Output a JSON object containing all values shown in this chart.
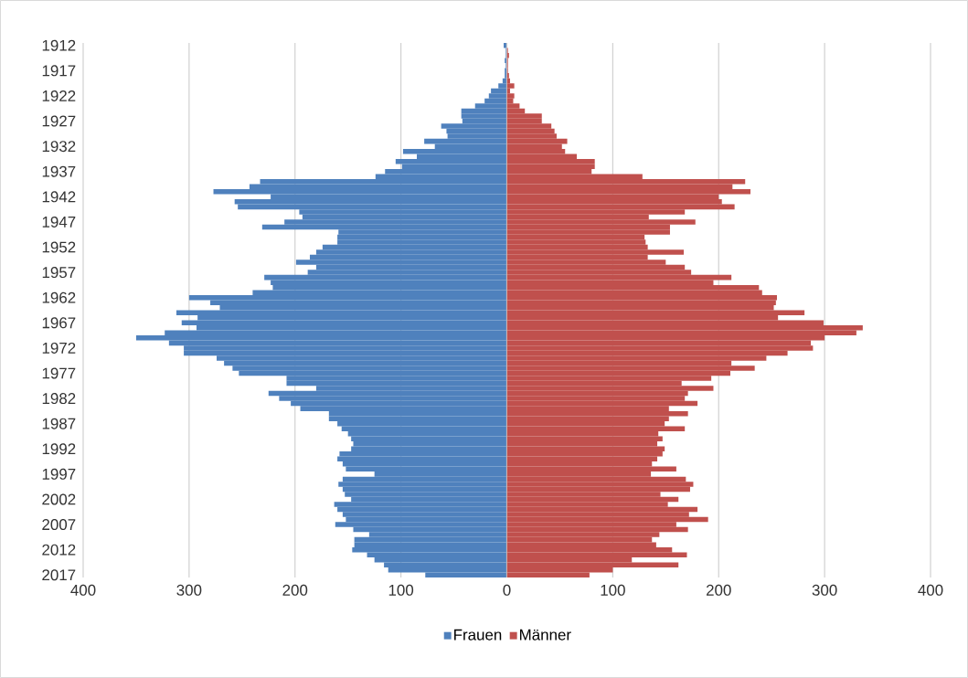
{
  "chart_data": [
    {
      "type": "bar",
      "orientation": "horizontal",
      "categories": [
        "1912",
        null,
        null,
        null,
        null,
        "1917",
        null,
        null,
        null,
        null,
        "1922",
        null,
        null,
        null,
        null,
        "1927",
        null,
        null,
        null,
        null,
        "1932",
        null,
        null,
        null,
        null,
        "1937",
        null,
        null,
        null,
        null,
        "1942",
        null,
        null,
        null,
        null,
        "1947",
        null,
        null,
        null,
        null,
        "1952",
        null,
        null,
        null,
        null,
        "1957",
        null,
        null,
        null,
        null,
        "1962",
        null,
        null,
        null,
        null,
        "1967",
        null,
        null,
        null,
        null,
        "1972",
        null,
        null,
        null,
        null,
        "1977",
        null,
        null,
        null,
        null,
        "1982",
        null,
        null,
        null,
        null,
        "1987",
        null,
        null,
        null,
        null,
        "1992",
        null,
        null,
        null,
        null,
        "1997",
        null,
        null,
        null,
        null,
        "2002",
        null,
        null,
        null,
        null,
        "2007",
        null,
        null,
        null,
        null,
        "2012",
        null,
        null,
        null,
        null,
        "2017"
      ],
      "series": [
        {
          "name": "Frauen",
          "color": "#4f81bd",
          "values": [
            3,
            1,
            1,
            2,
            1,
            2,
            2,
            4,
            8,
            15,
            17,
            21,
            30,
            43,
            43,
            42,
            62,
            57,
            56,
            78,
            68,
            98,
            85,
            105,
            99,
            115,
            124,
            233,
            243,
            277,
            223,
            257,
            254,
            196,
            193,
            210,
            231,
            159,
            160,
            160,
            174,
            180,
            186,
            199,
            180,
            188,
            229,
            223,
            221,
            240,
            300,
            280,
            271,
            312,
            292,
            307,
            293,
            323,
            350,
            319,
            305,
            305,
            274,
            267,
            259,
            253,
            208,
            208,
            180,
            225,
            215,
            204,
            195,
            168,
            168,
            160,
            156,
            150,
            147,
            145,
            147,
            158,
            160,
            155,
            152,
            125,
            155,
            159,
            155,
            153,
            147,
            163,
            160,
            155,
            152,
            162,
            145,
            130,
            144,
            144,
            146,
            132,
            125,
            116,
            112,
            77
          ]
        }
      ],
      "xlim": [
        400,
        0
      ],
      "xticks": [
        400,
        300,
        200,
        100,
        0
      ],
      "grid": "x",
      "legend": "bottom"
    },
    {
      "type": "bar",
      "orientation": "horizontal",
      "categories": [
        "1912",
        null,
        null,
        null,
        null,
        "1917",
        null,
        null,
        null,
        null,
        "1922",
        null,
        null,
        null,
        null,
        "1927",
        null,
        null,
        null,
        null,
        "1932",
        null,
        null,
        null,
        null,
        "1937",
        null,
        null,
        null,
        null,
        "1942",
        null,
        null,
        null,
        null,
        "1947",
        null,
        null,
        null,
        null,
        "1952",
        null,
        null,
        null,
        null,
        "1957",
        null,
        null,
        null,
        null,
        "1962",
        null,
        null,
        null,
        null,
        "1967",
        null,
        null,
        null,
        null,
        "1972",
        null,
        null,
        null,
        null,
        "1977",
        null,
        null,
        null,
        null,
        "1982",
        null,
        null,
        null,
        null,
        "1987",
        null,
        null,
        null,
        null,
        "1992",
        null,
        null,
        null,
        null,
        "1997",
        null,
        null,
        null,
        null,
        "2002",
        null,
        null,
        null,
        null,
        "2007",
        null,
        null,
        null,
        null,
        "2012",
        null,
        null,
        null,
        null,
        "2017"
      ],
      "series": [
        {
          "name": "Männer",
          "color": "#c0504d",
          "values": [
            0,
            1,
            2,
            1,
            1,
            1,
            2,
            3,
            7,
            3,
            7,
            6,
            12,
            17,
            33,
            33,
            42,
            45,
            47,
            57,
            52,
            55,
            66,
            83,
            83,
            80,
            128,
            225,
            213,
            230,
            200,
            203,
            215,
            168,
            134,
            178,
            154,
            154,
            130,
            131,
            133,
            167,
            133,
            150,
            168,
            174,
            212,
            195,
            238,
            241,
            255,
            254,
            252,
            281,
            256,
            299,
            336,
            330,
            300,
            287,
            289,
            265,
            245,
            212,
            234,
            211,
            193,
            165,
            195,
            171,
            168,
            180,
            153,
            171,
            153,
            149,
            168,
            143,
            147,
            142,
            149,
            147,
            142,
            137,
            160,
            136,
            169,
            176,
            173,
            145,
            162,
            152,
            180,
            172,
            190,
            160,
            171,
            144,
            137,
            141,
            156,
            170,
            118,
            162,
            100,
            78
          ]
        }
      ],
      "xlim": [
        0,
        400
      ],
      "xticks": [
        {
          "value": 0,
          "label": null
        },
        100,
        200,
        300,
        400
      ],
      "grid": "x",
      "legend": "bottom",
      "tick_labels": "x"
    }
  ]
}
